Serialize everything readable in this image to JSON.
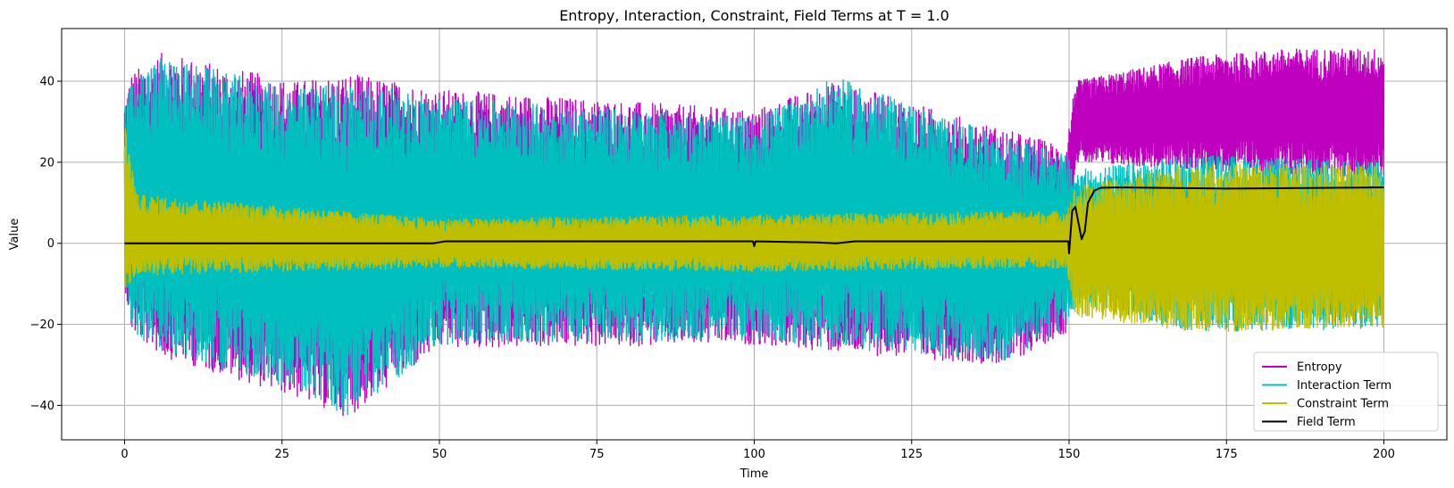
{
  "chart_data": {
    "type": "line",
    "title": "Entropy, Interaction, Constraint, Field Terms at T = 1.0",
    "xlabel": "Time",
    "ylabel": "Value",
    "xlim": [
      -10,
      210
    ],
    "ylim": [
      -48.5,
      53
    ],
    "xticks": [
      0,
      25,
      50,
      75,
      100,
      125,
      150,
      175,
      200
    ],
    "yticks": [
      -40,
      -20,
      0,
      20,
      40
    ],
    "ytick_labels": [
      "−40",
      "−20",
      "0",
      "20",
      "40"
    ],
    "grid": true,
    "legend_position": "lower-right",
    "series": [
      {
        "name": "Entropy",
        "color": "#bf00bf",
        "envelope": [
          {
            "t": 0,
            "lo": -10,
            "hi": 35
          },
          {
            "t": 1,
            "lo": -22,
            "hi": 42
          },
          {
            "t": 6,
            "lo": -28,
            "hi": 47
          },
          {
            "t": 27,
            "lo": -38,
            "hi": 40
          },
          {
            "t": 35.5,
            "lo": -43,
            "hi": 42
          },
          {
            "t": 50,
            "lo": -26,
            "hi": 38
          },
          {
            "t": 100,
            "lo": -25,
            "hi": 33
          },
          {
            "t": 113,
            "lo": -27,
            "hi": 40
          },
          {
            "t": 140,
            "lo": -30,
            "hi": 28
          },
          {
            "t": 149.5,
            "lo": -22,
            "hi": 24
          },
          {
            "t": 151,
            "lo": 20,
            "hi": 40
          },
          {
            "t": 170,
            "lo": 18,
            "hi": 46
          },
          {
            "t": 185,
            "lo": 17,
            "hi": 48
          },
          {
            "t": 200,
            "lo": 16,
            "hi": 48
          }
        ]
      },
      {
        "name": "Interaction Term",
        "color": "#00bfbf",
        "envelope": [
          {
            "t": 0,
            "lo": -10,
            "hi": 33
          },
          {
            "t": 1,
            "lo": -22,
            "hi": 40
          },
          {
            "t": 6,
            "lo": -27,
            "hi": 46
          },
          {
            "t": 27,
            "lo": -36,
            "hi": 38
          },
          {
            "t": 35.5,
            "lo": -43,
            "hi": 40
          },
          {
            "t": 50,
            "lo": -25,
            "hi": 36
          },
          {
            "t": 100,
            "lo": -24,
            "hi": 31
          },
          {
            "t": 113,
            "lo": -26,
            "hi": 41
          },
          {
            "t": 140,
            "lo": -29,
            "hi": 26
          },
          {
            "t": 149.5,
            "lo": -21,
            "hi": 22
          },
          {
            "t": 151,
            "lo": -15,
            "hi": 18
          },
          {
            "t": 170,
            "lo": -22,
            "hi": 22
          },
          {
            "t": 200,
            "lo": -21,
            "hi": 20
          }
        ]
      },
      {
        "name": "Constraint Term",
        "color": "#bfbf00",
        "envelope": [
          {
            "t": 0,
            "lo": -12,
            "hi": 30
          },
          {
            "t": 2,
            "lo": -8,
            "hi": 12
          },
          {
            "t": 50,
            "lo": -6,
            "hi": 6
          },
          {
            "t": 100,
            "lo": -7,
            "hi": 7
          },
          {
            "t": 149.5,
            "lo": -6,
            "hi": 8
          },
          {
            "t": 151,
            "lo": -18,
            "hi": 14
          },
          {
            "t": 170,
            "lo": -22,
            "hi": 20
          },
          {
            "t": 200,
            "lo": -21,
            "hi": 19
          }
        ]
      },
      {
        "name": "Field Term",
        "color": "#000000",
        "x": [
          0,
          49,
          51,
          99.8,
          100,
          100.2,
          110,
          113,
          116,
          149.9,
          150,
          150.5,
          151,
          151.5,
          152,
          152.5,
          153,
          154,
          155,
          158,
          175,
          200
        ],
        "y": [
          0,
          0,
          0.5,
          0.5,
          -0.7,
          0.5,
          0.2,
          0,
          0.5,
          0.5,
          -2.5,
          8,
          9,
          5,
          1,
          3,
          10,
          13,
          13.7,
          13.8,
          13.5,
          13.8
        ]
      }
    ]
  }
}
